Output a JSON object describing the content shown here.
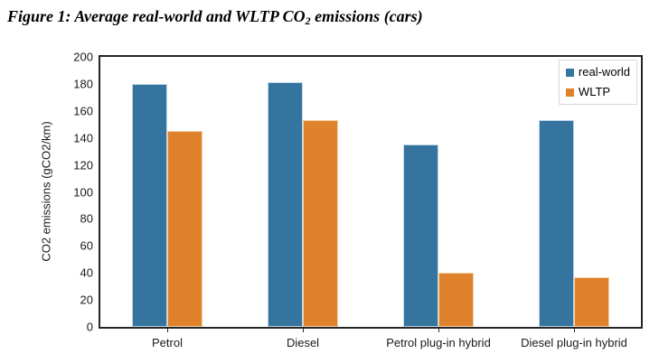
{
  "title": {
    "prefix": "Figure 1: Average real-world and WLTP CO",
    "subscript": "2",
    "suffix": " emissions (cars)"
  },
  "chart_data": {
    "type": "bar",
    "title": "Figure 1: Average real-world and WLTP CO2 emissions (cars)",
    "categories": [
      "Petrol",
      "Diesel",
      "Petrol plug-in hybrid",
      "Diesel plug-in hybrid"
    ],
    "series": [
      {
        "name": "real-world",
        "color": "#35749E",
        "edge_color": "#BFD7E8",
        "values": [
          180,
          181,
          135,
          153
        ]
      },
      {
        "name": "WLTP",
        "color": "#E0812C",
        "edge_color": "#F4D3A8",
        "values": [
          145,
          153,
          40,
          37
        ]
      }
    ],
    "xlabel": "",
    "ylabel": "CO2 emissions (gCO2/km)",
    "ylim": [
      0,
      200
    ],
    "yticks": [
      0,
      20,
      40,
      60,
      80,
      100,
      120,
      140,
      160,
      180,
      200
    ],
    "grid": false,
    "legend_position": "top-right",
    "plot_background": "#FFFFFF",
    "axis_color": "#262626"
  }
}
